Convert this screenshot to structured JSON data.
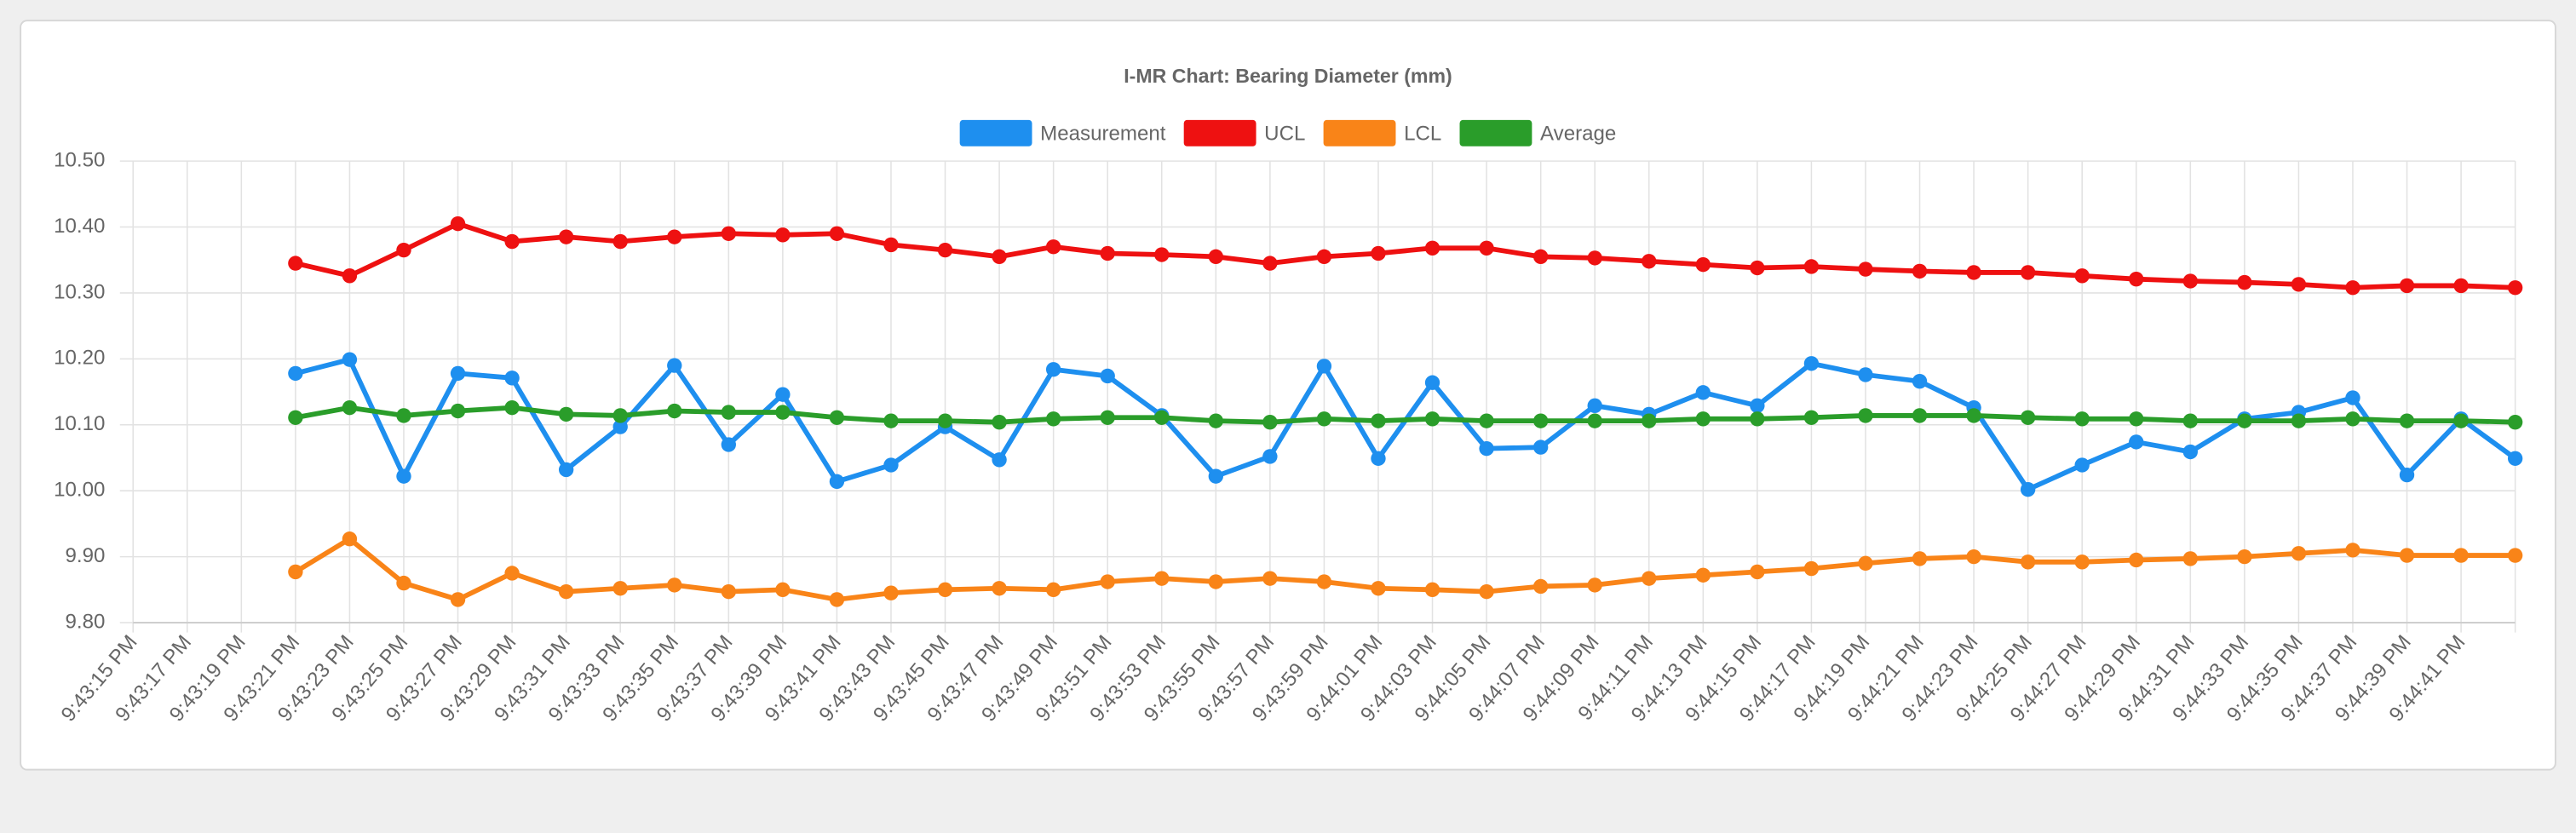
{
  "chart_data": {
    "type": "line",
    "title": "I-MR Chart: Bearing Diameter (mm)",
    "categories": [
      "9:43:15 PM",
      "9:43:17 PM",
      "9:43:19 PM",
      "9:43:21 PM",
      "9:43:23 PM",
      "9:43:25 PM",
      "9:43:27 PM",
      "9:43:29 PM",
      "9:43:31 PM",
      "9:43:33 PM",
      "9:43:35 PM",
      "9:43:37 PM",
      "9:43:39 PM",
      "9:43:41 PM",
      "9:43:43 PM",
      "9:43:45 PM",
      "9:43:47 PM",
      "9:43:49 PM",
      "9:43:51 PM",
      "9:43:53 PM",
      "9:43:55 PM",
      "9:43:57 PM",
      "9:43:59 PM",
      "9:44:01 PM",
      "9:44:03 PM",
      "9:44:05 PM",
      "9:44:07 PM",
      "9:44:09 PM",
      "9:44:11 PM",
      "9:44:13 PM",
      "9:44:15 PM",
      "9:44:17 PM",
      "9:44:19 PM",
      "9:44:21 PM",
      "9:44:23 PM",
      "9:44:25 PM",
      "9:44:27 PM",
      "9:44:29 PM",
      "9:44:31 PM",
      "9:44:33 PM",
      "9:44:35 PM",
      "9:44:37 PM",
      "9:44:39 PM",
      "9:44:41 PM",
      null
    ],
    "series": [
      {
        "name": "Measurement",
        "color": "#1e8fef",
        "values": [
          null,
          null,
          null,
          10.178,
          10.199,
          10.022,
          10.178,
          10.171,
          10.032,
          10.097,
          10.19,
          10.07,
          10.146,
          10.014,
          10.039,
          10.097,
          10.047,
          10.184,
          10.174,
          10.114,
          10.022,
          10.052,
          10.189,
          10.049,
          10.164,
          10.064,
          10.066,
          10.129,
          10.116,
          10.149,
          10.129,
          10.193,
          10.176,
          10.166,
          10.126,
          10.002,
          10.039,
          10.074,
          10.059,
          10.109,
          10.119,
          10.141,
          10.024,
          10.109,
          10.049
        ]
      },
      {
        "name": "UCL",
        "color": "#ee1111",
        "values": [
          null,
          null,
          null,
          10.345,
          10.326,
          10.365,
          10.405,
          10.378,
          10.385,
          10.378,
          10.385,
          10.39,
          10.388,
          10.39,
          10.373,
          10.365,
          10.355,
          10.37,
          10.36,
          10.358,
          10.355,
          10.345,
          10.355,
          10.36,
          10.368,
          10.368,
          10.355,
          10.353,
          10.348,
          10.343,
          10.338,
          10.34,
          10.336,
          10.333,
          10.331,
          10.331,
          10.326,
          10.321,
          10.318,
          10.316,
          10.313,
          10.308,
          10.311,
          10.311,
          10.308
        ]
      },
      {
        "name": "LCL",
        "color": "#f98418",
        "values": [
          null,
          null,
          null,
          9.877,
          9.927,
          9.86,
          9.835,
          9.875,
          9.847,
          9.852,
          9.857,
          9.847,
          9.85,
          9.835,
          9.845,
          9.85,
          9.852,
          9.85,
          9.862,
          9.867,
          9.862,
          9.867,
          9.862,
          9.852,
          9.85,
          9.847,
          9.855,
          9.857,
          9.867,
          9.872,
          9.877,
          9.882,
          9.89,
          9.897,
          9.9,
          9.892,
          9.892,
          9.895,
          9.897,
          9.9,
          9.905,
          9.91,
          9.902,
          9.902,
          9.902
        ]
      },
      {
        "name": "Average",
        "color": "#2a9d2a",
        "values": [
          null,
          null,
          null,
          10.111,
          10.126,
          10.114,
          10.121,
          10.126,
          10.116,
          10.114,
          10.121,
          10.119,
          10.119,
          10.111,
          10.106,
          10.106,
          10.104,
          10.109,
          10.111,
          10.111,
          10.106,
          10.104,
          10.109,
          10.106,
          10.109,
          10.106,
          10.106,
          10.106,
          10.106,
          10.109,
          10.109,
          10.111,
          10.114,
          10.114,
          10.114,
          10.111,
          10.109,
          10.109,
          10.106,
          10.106,
          10.106,
          10.109,
          10.106,
          10.106,
          10.104
        ]
      }
    ],
    "ylim": [
      9.8,
      10.5
    ],
    "yticks": [
      {
        "value": 9.8,
        "label": "9.80"
      },
      {
        "value": 9.9,
        "label": "9.90"
      },
      {
        "value": 10.0,
        "label": "10.00"
      },
      {
        "value": 10.1,
        "label": "10.10"
      },
      {
        "value": 10.2,
        "label": "10.20"
      },
      {
        "value": 10.3,
        "label": "10.30"
      },
      {
        "value": 10.4,
        "label": "10.40"
      },
      {
        "value": 10.5,
        "label": "10.50"
      }
    ],
    "grid": true,
    "legend": "top"
  }
}
